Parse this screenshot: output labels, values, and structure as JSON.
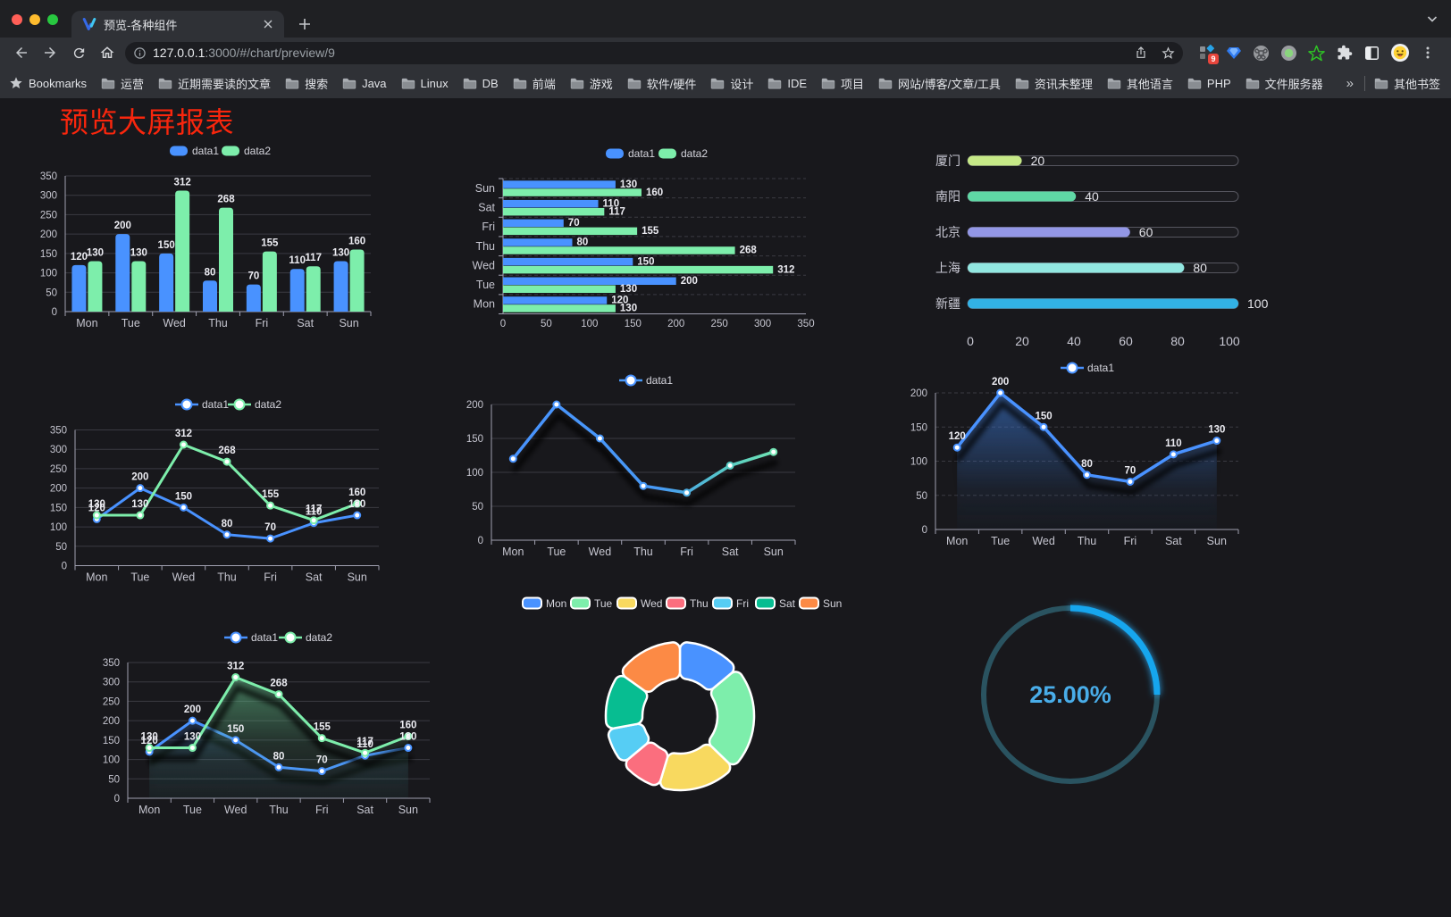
{
  "browser": {
    "tab": {
      "title": "预览-各种组件"
    },
    "url": {
      "host": "127.0.0.1",
      "rest": ":3000/#/chart/preview/9"
    },
    "extension_badge": "9",
    "bookmarks_label": "Bookmarks",
    "bookmarks": [
      "运营",
      "近期需要读的文章",
      "搜索",
      "Java",
      "Linux",
      "DB",
      "前端",
      "游戏",
      "软件/硬件",
      "设计",
      "IDE",
      "项目",
      "网站/博客/文章/工具",
      "资讯未整理",
      "其他语言",
      "PHP",
      "文件服务器"
    ],
    "overflow_chevron": "»",
    "other_bookmarks": "其他书签"
  },
  "page": {
    "title": "预览大屏报表"
  },
  "colors": {
    "blue": "#4992ff",
    "green": "#7deeab",
    "yellow": "#f8d95f",
    "red": "#fb6e7e",
    "cyan": "#56cdf4",
    "teal": "#07bd91",
    "orange": "#fc8a45",
    "axis": "#a0a0b0",
    "grid": "#3a3a42",
    "axis_text": "#c6c6d0",
    "value_text": "#ececf2",
    "page_bg": "#18181c",
    "title_red": "#f8260d"
  },
  "chart_data": [
    {
      "id": "bar-grouped",
      "type": "bar",
      "categories": [
        "Mon",
        "Tue",
        "Wed",
        "Thu",
        "Fri",
        "Sat",
        "Sun"
      ],
      "series": [
        {
          "name": "data1",
          "color": "#4992ff",
          "values": [
            120,
            200,
            150,
            80,
            70,
            110,
            130
          ]
        },
        {
          "name": "data2",
          "color": "#7deeab",
          "values": [
            130,
            130,
            312,
            268,
            155,
            117,
            160
          ]
        }
      ],
      "ylim": [
        0,
        350
      ],
      "ytick_step": 50,
      "value_labels": true,
      "legend_position": "top"
    },
    {
      "id": "bar-horizontal",
      "type": "bar-horizontal",
      "categories": [
        "Mon",
        "Tue",
        "Wed",
        "Thu",
        "Fri",
        "Sat",
        "Sun"
      ],
      "series": [
        {
          "name": "data1",
          "color": "#4992ff",
          "values": [
            120,
            200,
            150,
            80,
            70,
            110,
            130
          ]
        },
        {
          "name": "data2",
          "color": "#7deeab",
          "values": [
            130,
            130,
            312,
            268,
            155,
            117,
            160
          ]
        }
      ],
      "xlim": [
        0,
        350
      ],
      "xticks": [
        0,
        50,
        100,
        150,
        200,
        250,
        300,
        350
      ],
      "value_labels": true,
      "legend_position": "top"
    },
    {
      "id": "progress-bars",
      "type": "progress",
      "items": [
        {
          "label": "厦门",
          "value": 20,
          "color": "#c6e987"
        },
        {
          "label": "南阳",
          "value": 40,
          "color": "#5fd8a5"
        },
        {
          "label": "北京",
          "value": 60,
          "color": "#9397e6"
        },
        {
          "label": "上海",
          "value": 80,
          "color": "#92e7e1"
        },
        {
          "label": "新疆",
          "value": 100,
          "color": "#32b2e6"
        }
      ],
      "xlim": [
        0,
        100
      ],
      "xticks": [
        0,
        20,
        40,
        60,
        80,
        100
      ]
    },
    {
      "id": "line-two-series",
      "type": "line",
      "categories": [
        "Mon",
        "Tue",
        "Wed",
        "Thu",
        "Fri",
        "Sat",
        "Sun"
      ],
      "series": [
        {
          "name": "data1",
          "color": "#4992ff",
          "values": [
            120,
            200,
            150,
            80,
            70,
            110,
            130
          ]
        },
        {
          "name": "data2",
          "color": "#7deeab",
          "values": [
            130,
            130,
            312,
            268,
            155,
            117,
            160
          ]
        }
      ],
      "ylim": [
        0,
        350
      ],
      "ytick_step": 50,
      "value_labels": true,
      "legend_position": "top"
    },
    {
      "id": "line-gradient",
      "type": "line",
      "categories": [
        "Mon",
        "Tue",
        "Wed",
        "Thu",
        "Fri",
        "Sat",
        "Sun"
      ],
      "series": [
        {
          "name": "data1",
          "gradient": [
            "#4992ff",
            "#7deeab"
          ],
          "color": "#4992ff",
          "values": [
            120,
            200,
            150,
            80,
            70,
            110,
            130
          ]
        }
      ],
      "ylim": [
        0,
        200
      ],
      "ytick_step": 50,
      "value_labels": false,
      "legend_position": "top",
      "shadow": true
    },
    {
      "id": "line-area",
      "type": "area",
      "categories": [
        "Mon",
        "Tue",
        "Wed",
        "Thu",
        "Fri",
        "Sat",
        "Sun"
      ],
      "series": [
        {
          "name": "data1",
          "color": "#4992ff",
          "values": [
            120,
            200,
            150,
            80,
            70,
            110,
            130
          ]
        }
      ],
      "ylim": [
        0,
        200
      ],
      "ytick_step": 50,
      "value_labels": true,
      "legend_position": "top",
      "dashed_grid": true,
      "shadow": true
    },
    {
      "id": "area-two-series",
      "type": "area",
      "categories": [
        "Mon",
        "Tue",
        "Wed",
        "Thu",
        "Fri",
        "Sat",
        "Sun"
      ],
      "series": [
        {
          "name": "data1",
          "color": "#4992ff",
          "values": [
            120,
            200,
            150,
            80,
            70,
            110,
            130
          ]
        },
        {
          "name": "data2",
          "color": "#7deeab",
          "values": [
            130,
            130,
            312,
            268,
            155,
            117,
            160
          ]
        }
      ],
      "ylim": [
        0,
        350
      ],
      "ytick_step": 50,
      "value_labels": true,
      "legend_position": "top",
      "shadow": true
    },
    {
      "id": "donut",
      "type": "pie",
      "items": [
        {
          "label": "Mon",
          "value": 120,
          "color": "#4992ff"
        },
        {
          "label": "Tue",
          "value": 200,
          "color": "#7deeab"
        },
        {
          "label": "Wed",
          "value": 150,
          "color": "#f8d95f"
        },
        {
          "label": "Thu",
          "value": 80,
          "color": "#fb6e7e"
        },
        {
          "label": "Fri",
          "value": 70,
          "color": "#56cdf4"
        },
        {
          "label": "Sat",
          "value": 110,
          "color": "#07bd91"
        },
        {
          "label": "Sun",
          "value": 130,
          "color": "#fc8a45"
        }
      ],
      "legend_position": "top",
      "inner_radius_ratio": 0.5
    },
    {
      "id": "gauge",
      "type": "gauge",
      "value": 25,
      "display": "25.00%",
      "max": 100,
      "color": "#16a6ee",
      "track_color": "#2a5360",
      "text_color": "#49ade9"
    }
  ]
}
